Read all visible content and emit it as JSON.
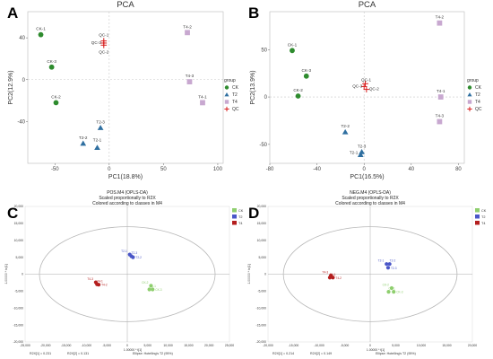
{
  "colors": {
    "CK": "#2e8b2e",
    "T2": "#2f6fa0",
    "T4": "#c8a8d0",
    "QC": "#d81e1e",
    "opls_CK": "#8fcf6f",
    "opls_T2": "#4a56c8",
    "opls_T4": "#b41e1e"
  },
  "chart_data": [
    {
      "panel": "A",
      "type": "scatter",
      "title": "PCA",
      "xlabel": "PC1(18.8%)",
      "ylabel": "PC2(12.9%)",
      "xlim": [
        -75,
        105
      ],
      "ylim": [
        -80,
        65
      ],
      "xticks": [
        -50,
        0,
        50,
        100
      ],
      "yticks": [
        -40,
        0,
        40
      ],
      "legend_title": "group",
      "legend": [
        "CK",
        "T2",
        "T4",
        "QC"
      ],
      "points": [
        {
          "group": "CK",
          "label": "CK-1",
          "x": -63,
          "y": 43
        },
        {
          "group": "CK",
          "label": "CK-3",
          "x": -53,
          "y": 12
        },
        {
          "group": "CK",
          "label": "CK-2",
          "x": -49,
          "y": -22
        },
        {
          "group": "T2",
          "label": "T2-3",
          "x": -8,
          "y": -46
        },
        {
          "group": "T2",
          "label": "T2-2",
          "x": -24,
          "y": -61
        },
        {
          "group": "T2",
          "label": "T2-1",
          "x": -11,
          "y": -65
        },
        {
          "group": "T4",
          "label": "T4-2",
          "x": 72,
          "y": 45
        },
        {
          "group": "T4",
          "label": "T4-3",
          "x": 74,
          "y": -2
        },
        {
          "group": "T4",
          "label": "T4-1",
          "x": 86,
          "y": -22
        },
        {
          "group": "QC",
          "label": "QC-1",
          "x": -5,
          "y": 37
        },
        {
          "group": "QC",
          "label": "QC-3",
          "x": -5,
          "y": 35
        },
        {
          "group": "QC",
          "label": "QC-2",
          "x": -5,
          "y": 33
        }
      ]
    },
    {
      "panel": "B",
      "type": "scatter",
      "title": "PCA",
      "xlabel": "PC1(16.5%)",
      "ylabel": "PC2(13.9%)",
      "xlim": [
        -80,
        85
      ],
      "ylim": [
        -70,
        90
      ],
      "xticks": [
        -80,
        -40,
        0,
        40,
        80
      ],
      "yticks": [
        -50,
        0,
        50
      ],
      "legend_title": "group",
      "legend": [
        "CK",
        "T2",
        "T4",
        "QC"
      ],
      "points": [
        {
          "group": "CK",
          "label": "CK-1",
          "x": -61,
          "y": 49
        },
        {
          "group": "CK",
          "label": "CK-3",
          "x": -49,
          "y": 22
        },
        {
          "group": "CK",
          "label": "CK-2",
          "x": -56,
          "y": 1
        },
        {
          "group": "T2",
          "label": "T2-2",
          "x": -16,
          "y": -37
        },
        {
          "group": "T2",
          "label": "T2-3",
          "x": -2,
          "y": -58
        },
        {
          "group": "T2",
          "label": "T2-1",
          "x": -3,
          "y": -61
        },
        {
          "group": "T4",
          "label": "T4-2",
          "x": 64,
          "y": 78
        },
        {
          "group": "T4",
          "label": "T4-1",
          "x": 65,
          "y": 0
        },
        {
          "group": "T4",
          "label": "T4-3",
          "x": 64,
          "y": -26
        },
        {
          "group": "QC",
          "label": "QC-1",
          "x": 1,
          "y": 14
        },
        {
          "group": "QC",
          "label": "QC-3",
          "x": 0,
          "y": 11
        },
        {
          "group": "QC",
          "label": "QC-2",
          "x": 2,
          "y": 8
        }
      ]
    },
    {
      "panel": "C",
      "type": "scatter",
      "title_lines": [
        "POS.M4 (OPLS-DA)",
        "Scaled proportionally to R2X",
        "Colored according to classes in M4"
      ],
      "xlabel": "1.00000 * t[1]",
      "ylabel": "1.00000 * to[1]",
      "xlim": [
        -25000,
        25000
      ],
      "ylim": [
        -20000,
        20000
      ],
      "xticks": [
        -25000,
        -20000,
        -15000,
        -10000,
        -5000,
        0,
        5000,
        10000,
        15000,
        20000,
        25000
      ],
      "xtick_labels": [
        "-25,000",
        "-20,000",
        "-15,000",
        "-10,000",
        "-5,000",
        "0",
        "5,000",
        "10,000",
        "15,000",
        "20,000",
        "25,000"
      ],
      "yticks": [
        -20000,
        -15000,
        -10000,
        -5000,
        0,
        5000,
        10000,
        15000,
        20000
      ],
      "ytick_labels": [
        "-20,000",
        "-15,000",
        "-10,000",
        "-5,000",
        "0",
        "5,000",
        "10,000",
        "15,000",
        "20,000"
      ],
      "ellipse": {
        "rx": 21500,
        "ry": 14000
      },
      "legend": [
        "CK",
        "T2",
        "T4"
      ],
      "footer": [
        "R2X[1] = 0.231",
        "R2X[2] = 0.131",
        "Ellipse: Hotelling's T2 (95%)"
      ],
      "points": [
        {
          "group": "T2",
          "label": "T2-1",
          "x": 600,
          "y": 5800
        },
        {
          "group": "T2",
          "label": "T2-3",
          "x": 1000,
          "y": 5300
        },
        {
          "group": "T2",
          "label": "T2-2",
          "x": 1400,
          "y": 5000
        },
        {
          "group": "T4",
          "label": "T4-3",
          "x": -7700,
          "y": -2400
        },
        {
          "group": "T4",
          "label": "T4-1",
          "x": -7400,
          "y": -3000
        },
        {
          "group": "T4",
          "label": "T4-2",
          "x": -7000,
          "y": -3100
        },
        {
          "group": "CK",
          "label": "CK-2",
          "x": 5800,
          "y": -3400
        },
        {
          "group": "CK",
          "label": "CK-1",
          "x": 5400,
          "y": -4500
        },
        {
          "group": "CK",
          "label": "CK-3",
          "x": 6200,
          "y": -4500
        }
      ]
    },
    {
      "panel": "D",
      "type": "scatter",
      "title_lines": [
        "NEG.M4 (OPLS-DA)",
        "Scaled proportionally to R2X",
        "Colored according to classes in M4"
      ],
      "xlabel": "1.00000 * t[1]",
      "ylabel": "1.00000 * to[1]",
      "xlim": [
        -20000,
        20000
      ],
      "ylim": [
        -20000,
        20000
      ],
      "xticks": [
        -20000,
        -15000,
        -10000,
        -5000,
        0,
        5000,
        10000,
        15000,
        20000
      ],
      "xtick_labels": [
        "-20,000",
        "-15,000",
        "-10,000",
        "-5,000",
        "0",
        "5,000",
        "10,000",
        "15,000",
        "20,000"
      ],
      "yticks": [
        -20000,
        -15000,
        -10000,
        -5000,
        0,
        5000,
        10000,
        15000,
        20000
      ],
      "ytick_labels": [
        "-20,000",
        "-15,000",
        "-10,000",
        "-5,000",
        "0",
        "5,000",
        "10,000",
        "15,000",
        "20,000"
      ],
      "ellipse": {
        "rx": 17000,
        "ry": 14000
      },
      "legend": [
        "CK",
        "T2",
        "T4"
      ],
      "footer": [
        "R2X[1] = 0.214",
        "R2X[2] = 0.149",
        "Ellipse: Hotelling's T2 (95%)"
      ],
      "points": [
        {
          "group": "T2",
          "label": "T2-1",
          "x": 3200,
          "y": 3000
        },
        {
          "group": "T2",
          "label": "T2-2",
          "x": 3800,
          "y": 3000
        },
        {
          "group": "T2",
          "label": "T2-3",
          "x": 3500,
          "y": 1900
        },
        {
          "group": "T4",
          "label": "T4-3",
          "x": -7700,
          "y": -400
        },
        {
          "group": "T4",
          "label": "T4-1",
          "x": -7900,
          "y": -1000
        },
        {
          "group": "T4",
          "label": "T4-2",
          "x": -7300,
          "y": -1000
        },
        {
          "group": "CK",
          "label": "CK-2",
          "x": 4200,
          "y": -4100
        },
        {
          "group": "CK",
          "label": "CK-1",
          "x": 3600,
          "y": -5200
        },
        {
          "group": "CK",
          "label": "CK-3",
          "x": 4600,
          "y": -5200
        }
      ]
    }
  ]
}
